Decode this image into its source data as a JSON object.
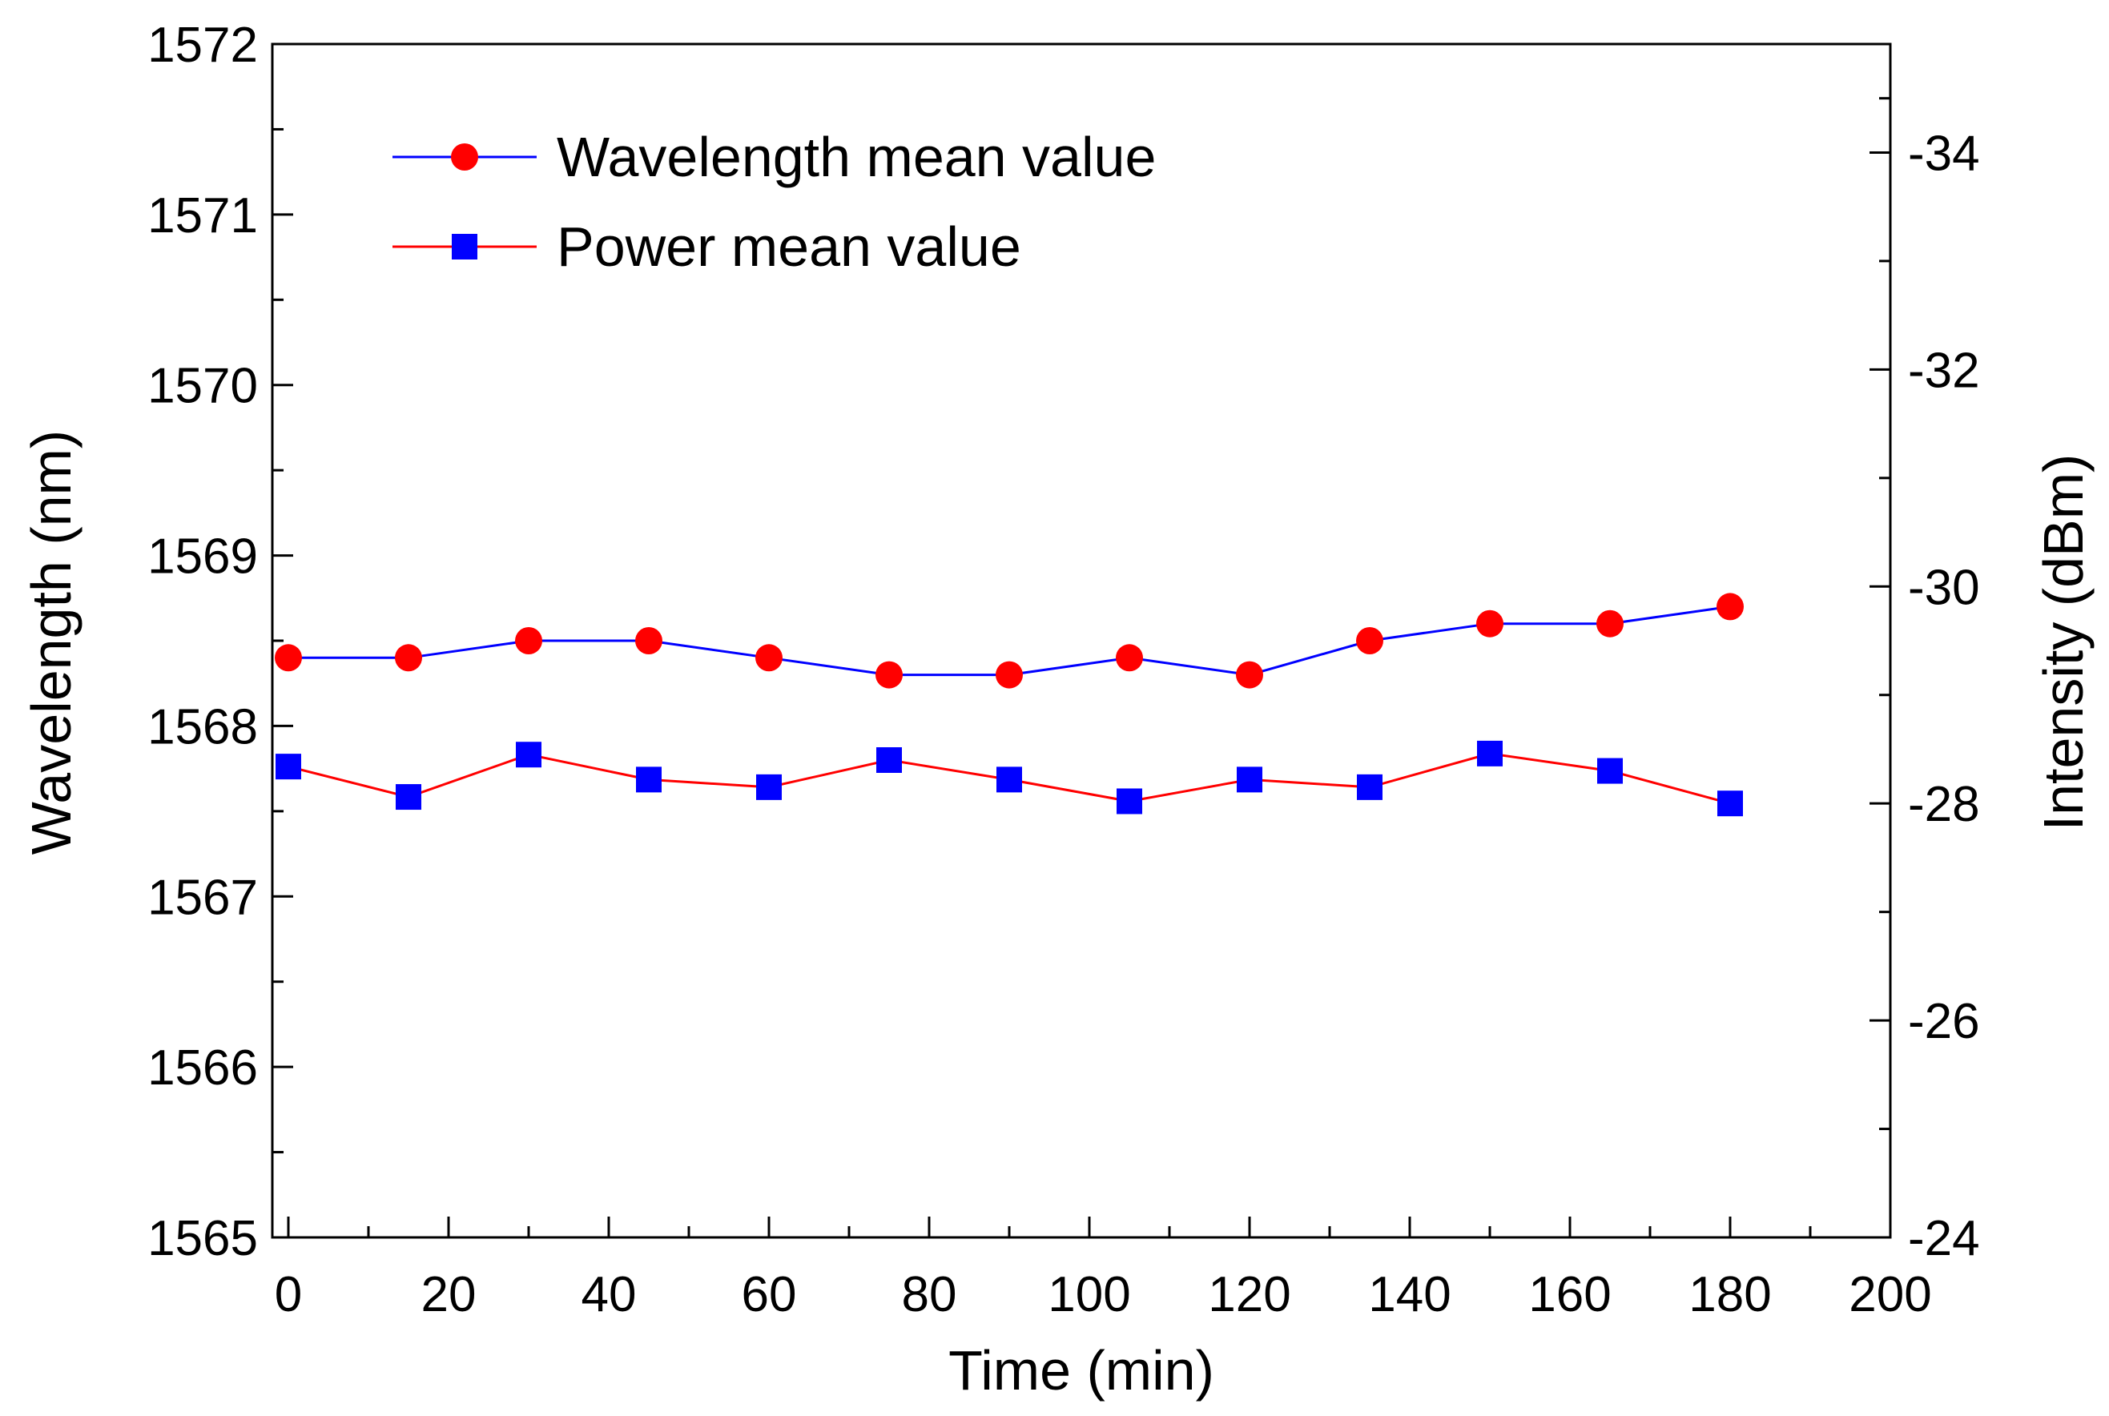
{
  "chart_data": {
    "type": "line",
    "title": "",
    "xlabel": "Time (min)",
    "ylabel": "Wavelength (nm)",
    "y2label": "Intensity (dBm)",
    "xlim": [
      -2,
      200
    ],
    "ylim": [
      1565,
      1572
    ],
    "y2lim": [
      -24,
      -35
    ],
    "y2_inverted": true,
    "grid": false,
    "legend_position": "top-left",
    "x_ticks": [
      0,
      20,
      40,
      60,
      80,
      100,
      120,
      140,
      160,
      180,
      200
    ],
    "y_ticks": [
      1565,
      1566,
      1567,
      1568,
      1569,
      1570,
      1571,
      1572
    ],
    "y2_ticks": [
      -24,
      -26,
      -28,
      -30,
      -32,
      -34
    ],
    "x": [
      0,
      15,
      30,
      45,
      60,
      75,
      90,
      105,
      120,
      135,
      150,
      165,
      180
    ],
    "series": [
      {
        "name": "Wavelength mean value",
        "axis": "left",
        "marker": "circle",
        "marker_color": "#ff0000",
        "line_color": "#0000ff",
        "values": [
          1568.4,
          1568.4,
          1568.5,
          1568.5,
          1568.4,
          1568.3,
          1568.3,
          1568.4,
          1568.3,
          1568.5,
          1568.6,
          1568.6,
          1568.7
        ]
      },
      {
        "name": "Power mean value",
        "axis": "right",
        "marker": "square",
        "marker_color": "#0000ff",
        "line_color": "#ff0000",
        "values": [
          -28.34,
          -28.06,
          -28.45,
          -28.22,
          -28.15,
          -28.4,
          -28.22,
          -28.02,
          -28.22,
          -28.15,
          -28.46,
          -28.3,
          -28.0
        ]
      }
    ]
  }
}
